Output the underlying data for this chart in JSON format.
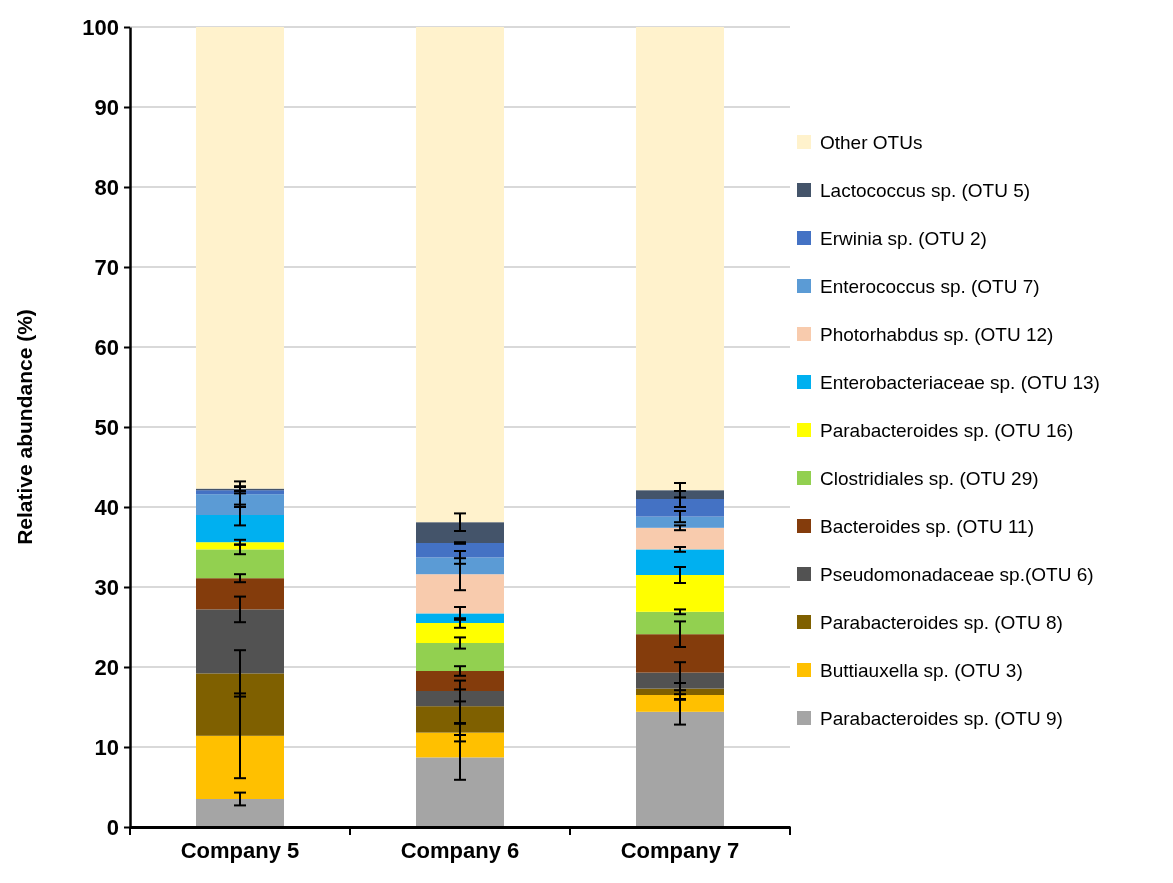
{
  "chart_data": {
    "type": "bar",
    "stacked": true,
    "ylabel": "Relative abundance (%)",
    "categories": [
      "Company 5",
      "Company 6",
      "Company 7"
    ],
    "ylim": [
      0,
      100
    ],
    "yticks": [
      0,
      10,
      20,
      30,
      40,
      50,
      60,
      70,
      80,
      90,
      100
    ],
    "grid": "y",
    "legend": "right",
    "series": [
      {
        "name": "Parabacteroides sp. (OTU 9)",
        "color": "#a5a5a5",
        "values": [
          3.5,
          8.7,
          14.4
        ],
        "errors": [
          0.8,
          2.8,
          1.6
        ]
      },
      {
        "name": "Buttiauxella sp. (OTU 3)",
        "color": "#ffc000",
        "values": [
          7.9,
          3.1,
          2.1
        ],
        "errors": [
          5.3,
          1.1,
          0.6
        ]
      },
      {
        "name": "Parabacteroides sp. (OTU 8)",
        "color": "#7f6000",
        "values": [
          7.8,
          3.3,
          0.8
        ],
        "errors": [
          2.9,
          2.1,
          0.7
        ]
      },
      {
        "name": "Pseudomonadaceae sp.(OTU 6)",
        "color": "#525252",
        "values": [
          8.0,
          1.9,
          2.0
        ],
        "errors": [
          1.6,
          1.3,
          1.3
        ]
      },
      {
        "name": "Bacteroides sp. (OTU 11)",
        "color": "#843c0c",
        "values": [
          3.9,
          2.5,
          4.8
        ],
        "errors": [
          0.5,
          0.6,
          1.6
        ]
      },
      {
        "name": "Clostridiales sp. (OTU 29)",
        "color": "#92d050",
        "values": [
          3.6,
          3.5,
          2.8
        ],
        "errors": [
          0.6,
          0.7,
          0.3
        ]
      },
      {
        "name": "Parabacteroides sp. (OTU 16)",
        "color": "#ffff00",
        "values": [
          0.9,
          2.5,
          4.6
        ],
        "errors": [
          0.3,
          0.6,
          1.0
        ]
      },
      {
        "name": "Enterobacteriaceae sp. (OTU 13)",
        "color": "#00b0f0",
        "values": [
          3.4,
          1.2,
          3.2
        ],
        "errors": [
          1.3,
          0.8,
          0.3
        ]
      },
      {
        "name": "Photorhabdus sp. (OTU 12)",
        "color": "#f8cbad",
        "values": [
          0,
          4.9,
          2.7
        ],
        "errors": [
          null,
          2.0,
          0.3
        ]
      },
      {
        "name": "Enterococcus sp. (OTU 7)",
        "color": "#5b9bd5",
        "values": [
          2.6,
          2.1,
          1.4
        ],
        "errors": [
          1.6,
          0.8,
          0.7
        ]
      },
      {
        "name": "Erwinia sp. (OTU 2)",
        "color": "#4472c4",
        "values": [
          0.5,
          1.8,
          2.2
        ],
        "errors": [
          0.4,
          0.1,
          1.0
        ]
      },
      {
        "name": "Lactococcus sp. (OTU 5)",
        "color": "#44546a",
        "values": [
          0.2,
          2.6,
          1.1
        ],
        "errors": [
          0.3,
          1.1,
          0.9
        ]
      },
      {
        "name": "Other OTUs",
        "color": "#fff2cc",
        "values": [
          57.7,
          61.9,
          57.9
        ]
      }
    ]
  }
}
